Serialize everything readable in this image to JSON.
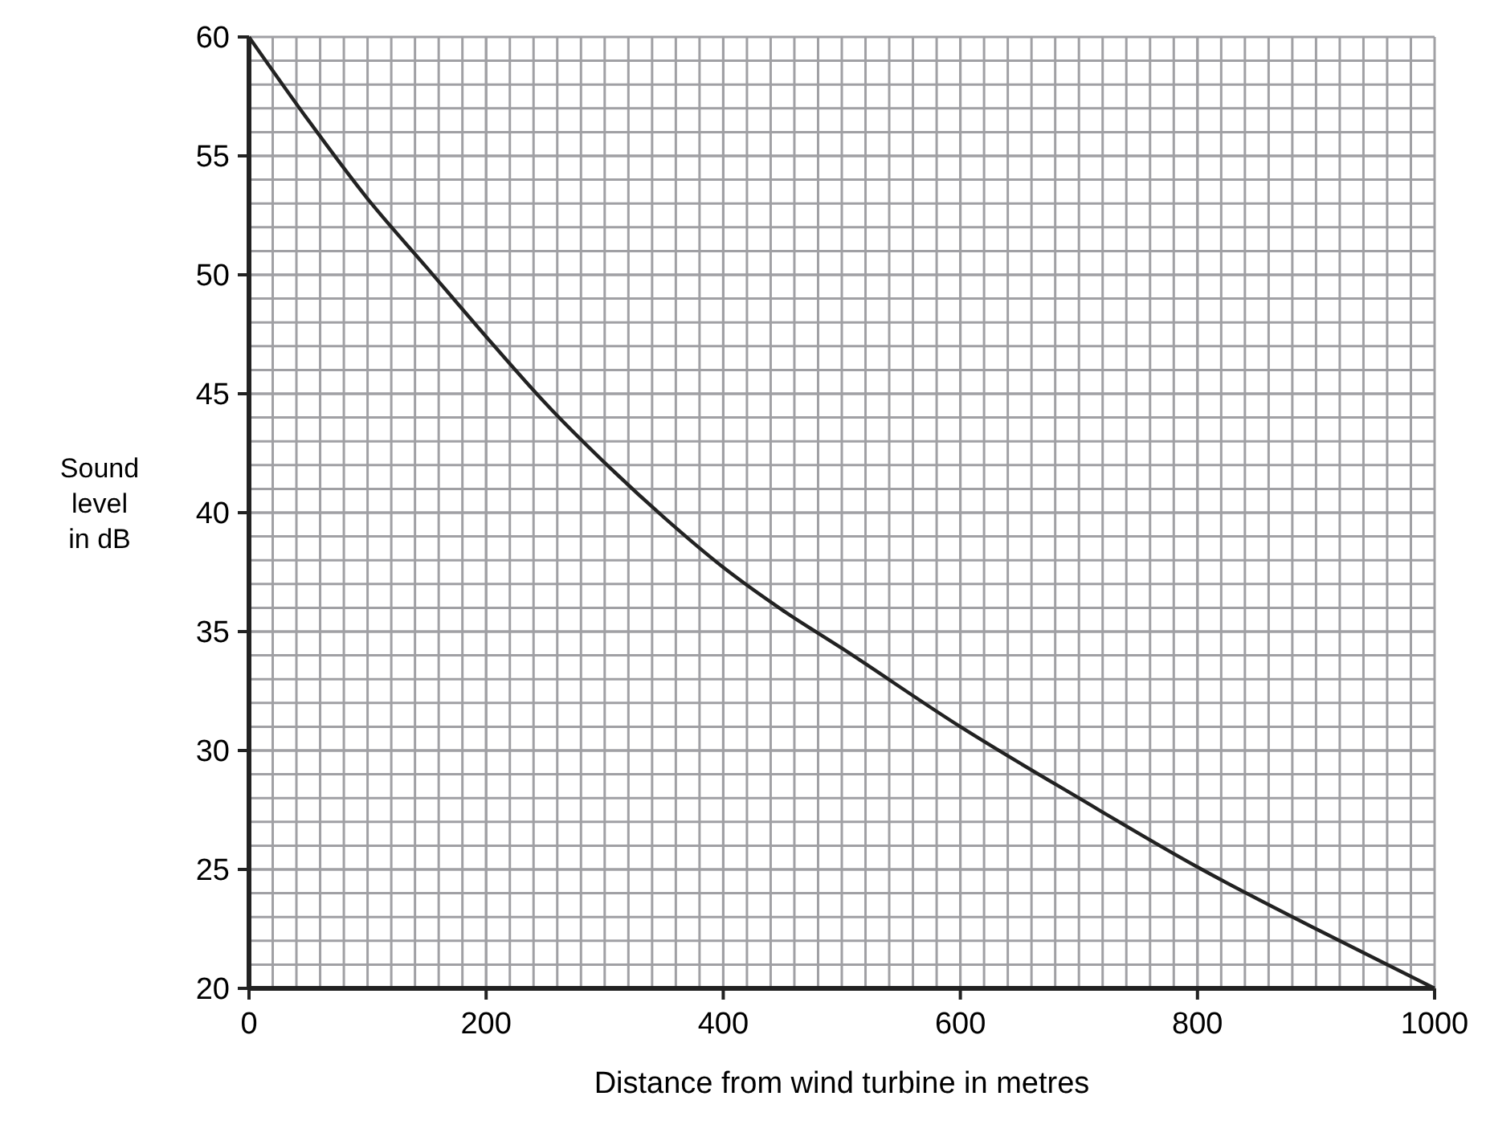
{
  "chart_data": {
    "type": "line",
    "xlabel": "Distance from wind turbine in metres",
    "ylabel": "Sound level in dB",
    "x": [
      0,
      50,
      100,
      150,
      200,
      250,
      300,
      350,
      400,
      450,
      500,
      600,
      700,
      800,
      900,
      1000
    ],
    "series": [
      {
        "color": "#222222",
        "values": [
          60,
          56.5,
          53.2,
          50.3,
          47.4,
          44.6,
          42.1,
          39.8,
          37.7,
          35.9,
          34.3,
          31.0,
          28.0,
          25.1,
          22.5,
          20
        ]
      }
    ],
    "xlim": [
      0,
      1000
    ],
    "ylim": [
      20,
      60
    ],
    "xticks": [
      0,
      200,
      400,
      600,
      800,
      1000
    ],
    "yticks": [
      20,
      25,
      30,
      35,
      40,
      45,
      50,
      55,
      60
    ],
    "grid": true,
    "marker": "none",
    "line_style": "solid"
  }
}
